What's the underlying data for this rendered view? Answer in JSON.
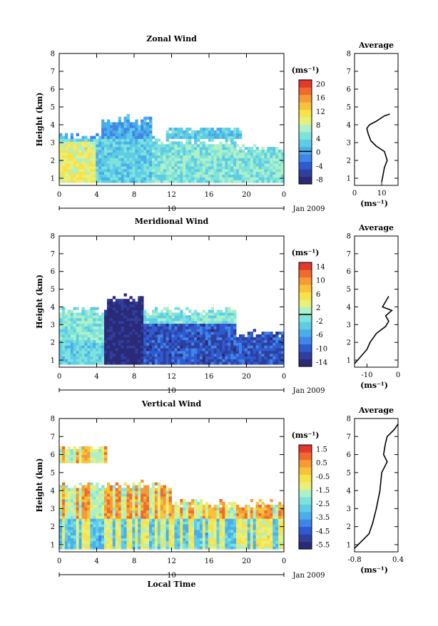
{
  "chart_data": [
    {
      "type": "heatmap",
      "title": "Zonal Wind",
      "ylabel": "Height (km)",
      "xticks": [
        "0",
        "4",
        "8",
        "12",
        "16",
        "20",
        "0"
      ],
      "yticks": [
        "1",
        "2",
        "3",
        "4",
        "5",
        "6",
        "7",
        "8"
      ],
      "ylim": [
        0.6,
        8
      ],
      "xlim": [
        0,
        24
      ],
      "date_label": "10",
      "month_label": "Jan 2009",
      "colorbar": {
        "unit": "(ms⁻¹)",
        "ticks": [
          "20",
          "16",
          "12",
          "8",
          "4",
          "0",
          "-4",
          "-8"
        ],
        "range": [
          -10,
          22
        ],
        "zero_line": 0
      },
      "average": {
        "title": "Average",
        "xticks": [
          "0",
          "10"
        ],
        "xlim": [
          0,
          16
        ],
        "xlabel": "(ms⁻¹)",
        "profile": [
          [
            10,
            0.8
          ],
          [
            10.5,
            1.2
          ],
          [
            11,
            1.6
          ],
          [
            12,
            2.0
          ],
          [
            11,
            2.5
          ],
          [
            8,
            2.8
          ],
          [
            6,
            3.1
          ],
          [
            5,
            3.5
          ],
          [
            4.5,
            3.8
          ],
          [
            5.5,
            4.0
          ],
          [
            8,
            4.2
          ],
          [
            11,
            4.5
          ],
          [
            13,
            4.6
          ]
        ]
      }
    },
    {
      "type": "heatmap",
      "title": "Meridional Wind",
      "ylabel": "Height (km)",
      "xticks": [
        "0",
        "4",
        "8",
        "12",
        "16",
        "20",
        "0"
      ],
      "yticks": [
        "1",
        "2",
        "3",
        "4",
        "5",
        "6",
        "7",
        "8"
      ],
      "ylim": [
        0.6,
        8
      ],
      "xlim": [
        0,
        24
      ],
      "date_label": "10",
      "month_label": "Jan 2009",
      "colorbar": {
        "unit": "(ms⁻¹)",
        "ticks": [
          "14",
          "10",
          "6",
          "2",
          "-2",
          "-6",
          "-10",
          "-14"
        ],
        "range": [
          -16,
          16
        ],
        "zero_line": 0
      },
      "average": {
        "title": "Average",
        "xticks": [
          "-10",
          "0"
        ],
        "xlim": [
          -14,
          0
        ],
        "xlabel": "(ms⁻¹)",
        "profile": [
          [
            -14,
            0.8
          ],
          [
            -12,
            1.2
          ],
          [
            -10,
            1.6
          ],
          [
            -9,
            2.0
          ],
          [
            -7,
            2.5
          ],
          [
            -4,
            2.9
          ],
          [
            -3,
            3.2
          ],
          [
            -4,
            3.5
          ],
          [
            -2,
            3.8
          ],
          [
            -5,
            4.0
          ],
          [
            -4,
            4.3
          ],
          [
            -3,
            4.6
          ]
        ]
      }
    },
    {
      "type": "heatmap",
      "title": "Vertical Wind",
      "ylabel": "Height (km)",
      "xlabel": "Local Time",
      "xticks": [
        "0",
        "4",
        "8",
        "12",
        "16",
        "20",
        "0"
      ],
      "yticks": [
        "1",
        "2",
        "3",
        "4",
        "5",
        "6",
        "7",
        "8"
      ],
      "ylim": [
        0.6,
        8
      ],
      "xlim": [
        0,
        24
      ],
      "date_label": "10",
      "month_label": "Jan 2009",
      "colorbar": {
        "unit": "(ms⁻¹)",
        "ticks": [
          "1.5",
          "0.5",
          "-0.5",
          "-1.5",
          "-2.5",
          "-3.5",
          "-4.5",
          "-5.5"
        ],
        "range": [
          -6,
          2
        ],
        "zero_line": null
      },
      "average": {
        "title": "Average",
        "xticks": [
          "-0.8",
          "0.4"
        ],
        "xlim": [
          -0.8,
          0.4
        ],
        "xlabel": "(ms⁻¹)",
        "profile": [
          [
            -0.8,
            0.8
          ],
          [
            -0.6,
            1.2
          ],
          [
            -0.4,
            1.6
          ],
          [
            -0.3,
            2.2
          ],
          [
            -0.2,
            3.0
          ],
          [
            -0.1,
            4.0
          ],
          [
            -0.05,
            5.0
          ],
          [
            0.1,
            5.6
          ],
          [
            0.0,
            6.0
          ],
          [
            0.05,
            6.6
          ],
          [
            0.1,
            7.0
          ],
          [
            0.3,
            7.4
          ],
          [
            0.4,
            7.7
          ]
        ]
      }
    }
  ]
}
